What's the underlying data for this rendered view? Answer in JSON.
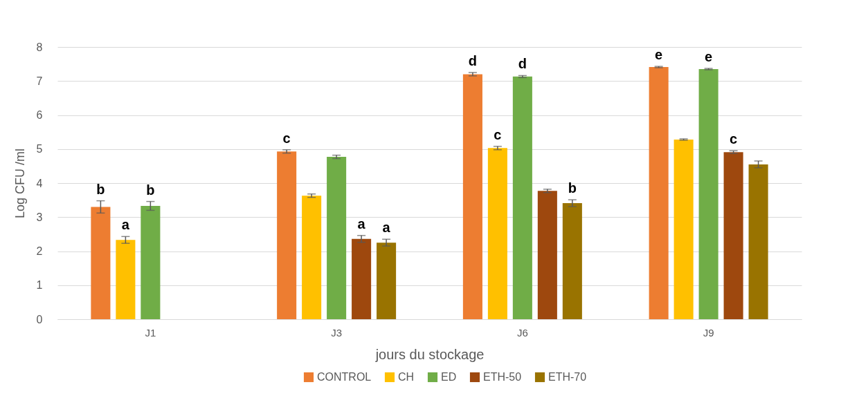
{
  "chart_data": {
    "type": "bar",
    "xlabel": "jours du stockage",
    "ylabel": "Log CFU /ml",
    "categories": [
      "J1",
      "J3",
      "J6",
      "J9"
    ],
    "series": [
      {
        "name": "CONTROL",
        "color": "#ed7d31",
        "values": [
          3.3,
          4.93,
          7.2,
          7.41
        ],
        "errors": [
          0.18,
          0.05,
          0.05,
          0.02
        ],
        "value_labels": [
          "b",
          "c",
          "d",
          "e"
        ]
      },
      {
        "name": "CH",
        "color": "#ffc000",
        "values": [
          2.33,
          3.63,
          5.03,
          5.28
        ],
        "errors": [
          0.1,
          0.05,
          0.05,
          0.02
        ],
        "value_labels": [
          "a",
          null,
          "c",
          null
        ]
      },
      {
        "name": "ED",
        "color": "#70ad47",
        "values": [
          3.33,
          4.77,
          7.13,
          7.35
        ],
        "errors": [
          0.13,
          0.05,
          0.03,
          0.02
        ],
        "value_labels": [
          "b",
          null,
          "d",
          "e"
        ]
      },
      {
        "name": "ETH-50",
        "color": "#9e480e",
        "values": [
          0,
          2.36,
          3.77,
          4.91
        ],
        "errors": [
          null,
          0.1,
          0.05,
          0.04
        ],
        "value_labels": [
          null,
          "a",
          null,
          "c"
        ]
      },
      {
        "name": "ETH-70",
        "color": "#997300",
        "values": [
          0,
          2.25,
          3.41,
          4.55
        ],
        "errors": [
          null,
          0.1,
          0.1,
          0.1
        ],
        "value_labels": [
          null,
          "a",
          "b",
          null
        ]
      }
    ],
    "ylim": [
      0,
      8
    ],
    "yticks": [
      0,
      1,
      2,
      3,
      4,
      5,
      6,
      7,
      8
    ],
    "grid": "y",
    "legend": "bottom"
  }
}
